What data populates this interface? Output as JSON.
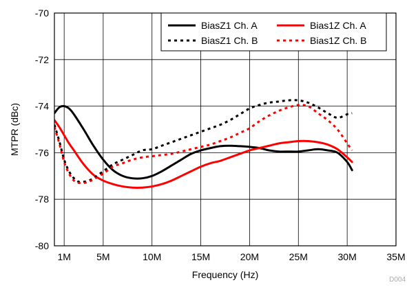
{
  "chart_data": {
    "type": "line",
    "title": "",
    "xlabel": "Frequency (Hz)",
    "ylabel": "MTPR (dBc)",
    "xlim": [
      0,
      35
    ],
    "ylim": [
      -80,
      -70
    ],
    "grid": true,
    "legend_position": "top-right",
    "figure_id": "D004",
    "x_ticks": [
      {
        "value": 1,
        "label": "1M"
      },
      {
        "value": 5,
        "label": "5M"
      },
      {
        "value": 10,
        "label": "10M"
      },
      {
        "value": 15,
        "label": "15M"
      },
      {
        "value": 20,
        "label": "20M"
      },
      {
        "value": 25,
        "label": "25M"
      },
      {
        "value": 30,
        "label": "30M"
      },
      {
        "value": 35,
        "label": "35M"
      }
    ],
    "y_ticks": [
      {
        "value": -70,
        "label": "-70"
      },
      {
        "value": -72,
        "label": "-72"
      },
      {
        "value": -74,
        "label": "-74"
      },
      {
        "value": -76,
        "label": "-76"
      },
      {
        "value": -78,
        "label": "-78"
      },
      {
        "value": -80,
        "label": "-80"
      }
    ],
    "series": [
      {
        "name": "BiasZ1 Ch. A",
        "color": "#000000",
        "dash": "solid",
        "x": [
          0,
          0.5,
          1,
          1.5,
          2,
          3,
          4,
          5,
          6,
          7,
          8,
          9,
          10,
          11,
          12,
          13,
          14,
          15,
          16,
          17,
          18,
          19,
          20,
          21,
          22,
          23,
          24,
          25,
          26,
          27,
          28,
          29,
          30,
          30.5
        ],
        "y": [
          -74.3,
          -74.05,
          -74.0,
          -74.1,
          -74.35,
          -75.0,
          -75.7,
          -76.3,
          -76.75,
          -77.0,
          -77.1,
          -77.1,
          -77.0,
          -76.8,
          -76.55,
          -76.3,
          -76.05,
          -75.9,
          -75.8,
          -75.72,
          -75.7,
          -75.72,
          -75.75,
          -75.8,
          -75.9,
          -75.95,
          -75.95,
          -75.95,
          -75.9,
          -75.85,
          -75.9,
          -76.0,
          -76.4,
          -76.75
        ]
      },
      {
        "name": "Bias1Z Ch. A",
        "color": "#ff0000",
        "dash": "solid",
        "x": [
          0,
          0.5,
          1,
          1.5,
          2,
          3,
          4,
          5,
          6,
          7,
          8,
          9,
          10,
          11,
          12,
          13,
          14,
          15,
          16,
          17,
          18,
          19,
          20,
          21,
          22,
          23,
          24,
          25,
          26,
          27,
          28,
          29,
          30,
          30.5
        ],
        "y": [
          -74.6,
          -74.9,
          -75.25,
          -75.6,
          -75.9,
          -76.5,
          -76.95,
          -77.2,
          -77.35,
          -77.45,
          -77.5,
          -77.5,
          -77.45,
          -77.35,
          -77.2,
          -77.0,
          -76.8,
          -76.6,
          -76.45,
          -76.35,
          -76.2,
          -76.05,
          -75.9,
          -75.8,
          -75.7,
          -75.6,
          -75.55,
          -75.5,
          -75.5,
          -75.55,
          -75.65,
          -75.85,
          -76.2,
          -76.4
        ]
      },
      {
        "name": "BiasZ1 Ch. B",
        "color": "#000000",
        "dash": "dotted",
        "x": [
          0,
          0.5,
          1,
          1.5,
          2,
          2.5,
          3,
          3.5,
          4,
          5,
          6,
          7,
          8,
          9,
          10,
          11,
          12,
          13,
          14,
          15,
          16,
          17,
          18,
          19,
          20,
          21,
          22,
          23,
          24,
          25,
          26,
          27,
          28,
          29,
          30,
          30.5
        ],
        "y": [
          -74.8,
          -75.5,
          -76.3,
          -76.8,
          -77.1,
          -77.25,
          -77.25,
          -77.2,
          -77.1,
          -76.8,
          -76.5,
          -76.3,
          -76.1,
          -75.9,
          -75.85,
          -75.7,
          -75.55,
          -75.4,
          -75.25,
          -75.1,
          -74.95,
          -74.8,
          -74.6,
          -74.35,
          -74.1,
          -73.95,
          -73.85,
          -73.8,
          -73.75,
          -73.75,
          -73.85,
          -74.05,
          -74.3,
          -74.5,
          -74.35,
          -74.3
        ]
      },
      {
        "name": "Bias1Z Ch. B",
        "color": "#ff0000",
        "dash": "dotted",
        "x": [
          0,
          0.5,
          1,
          1.5,
          2,
          2.5,
          3,
          3.5,
          4,
          5,
          6,
          7,
          8,
          9,
          10,
          11,
          12,
          13,
          14,
          15,
          16,
          17,
          18,
          19,
          20,
          21,
          22,
          23,
          24,
          25,
          26,
          27,
          28,
          29,
          30,
          30.5
        ],
        "y": [
          -74.9,
          -75.6,
          -76.4,
          -76.9,
          -77.2,
          -77.3,
          -77.3,
          -77.25,
          -77.15,
          -76.9,
          -76.6,
          -76.45,
          -76.3,
          -76.2,
          -76.15,
          -76.1,
          -76.05,
          -75.95,
          -75.85,
          -75.75,
          -75.65,
          -75.5,
          -75.35,
          -75.15,
          -74.95,
          -74.65,
          -74.4,
          -74.2,
          -74.05,
          -73.95,
          -74.0,
          -74.3,
          -74.6,
          -75.0,
          -75.6,
          -75.9
        ]
      }
    ]
  }
}
